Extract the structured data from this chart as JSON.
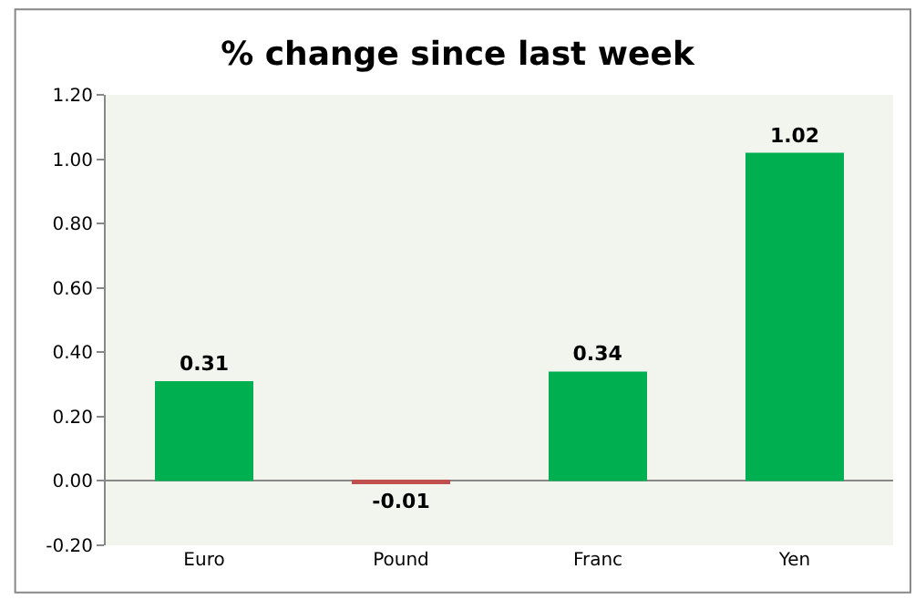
{
  "chart_data": {
    "type": "bar",
    "title": "% change since last week",
    "categories": [
      "Euro",
      "Pound",
      "Franc",
      "Yen"
    ],
    "values": [
      0.31,
      -0.01,
      0.34,
      1.02
    ],
    "colors": [
      "#00b050",
      "#c0504d",
      "#00b050",
      "#00b050"
    ],
    "ylim": [
      -0.2,
      1.2
    ],
    "yticks": [
      {
        "value": -0.2,
        "label": "-0.20"
      },
      {
        "value": 0,
        "label": "0.00"
      },
      {
        "value": 0.2,
        "label": "0.20"
      },
      {
        "value": 0.4,
        "label": "0.40"
      },
      {
        "value": 0.6,
        "label": "0.60"
      },
      {
        "value": 0.8,
        "label": "0.80"
      },
      {
        "value": 1.0,
        "label": "1.00"
      },
      {
        "value": 1.2,
        "label": "1.20"
      }
    ],
    "data_labels": true
  }
}
